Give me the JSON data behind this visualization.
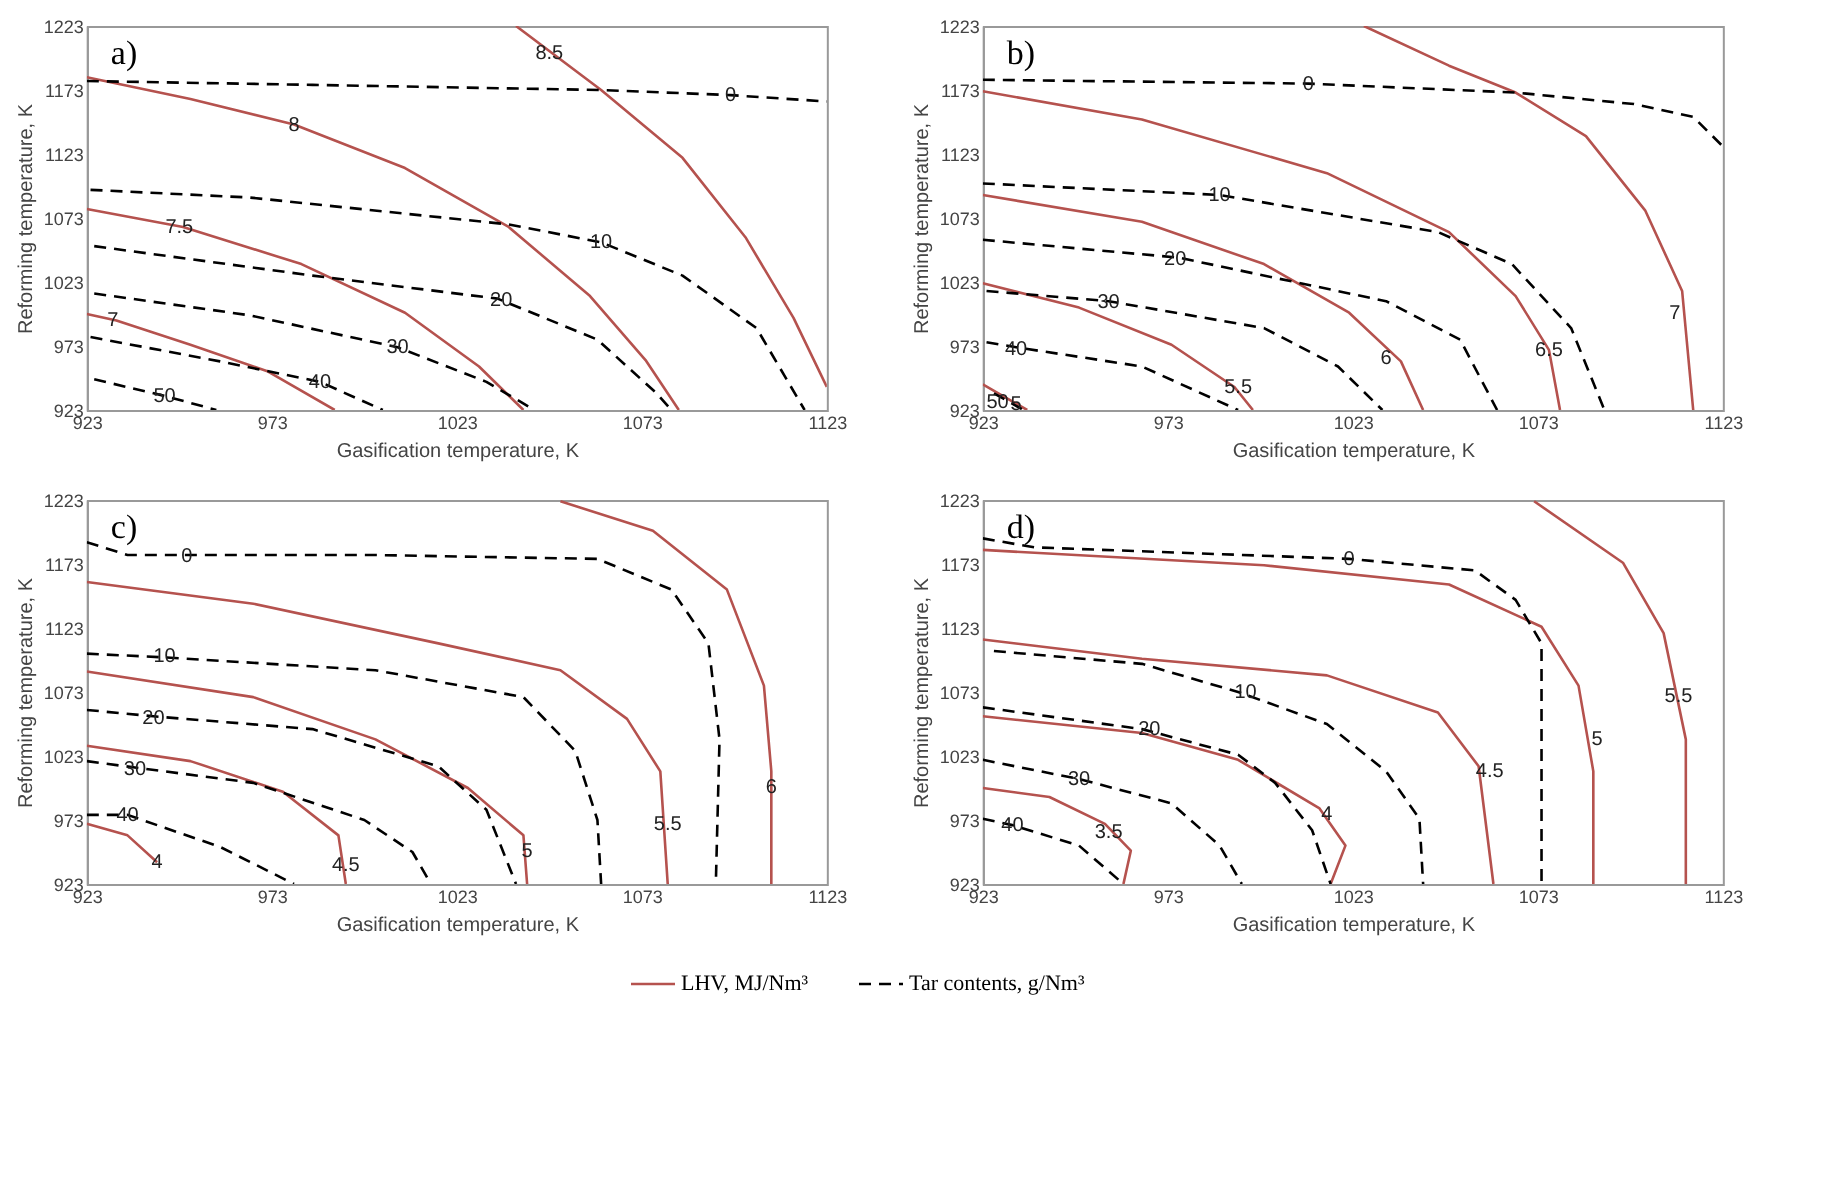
{
  "chart_data": [
    {
      "type": "line",
      "title": "a)",
      "xlabel": "Gasification temperature, K",
      "ylabel": "Reforming temperature, K",
      "xlim": [
        923,
        1123
      ],
      "ylim": [
        923,
        1223
      ],
      "xticks": [
        923,
        973,
        1023,
        1073,
        1123
      ],
      "yticks": [
        923,
        973,
        1023,
        1073,
        1123,
        1173,
        1223
      ],
      "grid": false,
      "marker": "none",
      "series": [
        {
          "color": "#b5524e",
          "line_style": "solid",
          "x": [
            1039,
            1062,
            1084,
            1101,
            1114,
            1123
          ],
          "values": [
            1223,
            1173,
            1120,
            1058,
            995,
            941
          ]
        },
        {
          "color": "#b5524e",
          "line_style": "solid",
          "x": [
            923,
            951,
            979,
            1009,
            1037,
            1059,
            1074,
            1083
          ],
          "values": [
            1183,
            1166,
            1146,
            1112,
            1066,
            1012,
            962,
            923
          ]
        },
        {
          "color": "#b5524e",
          "line_style": "solid",
          "x": [
            923,
            949,
            981,
            1009,
            1029,
            1041
          ],
          "values": [
            1080,
            1066,
            1037,
            999,
            957,
            923
          ]
        },
        {
          "color": "#b5524e",
          "line_style": "solid",
          "x": [
            923,
            931,
            951,
            972,
            990
          ],
          "values": [
            998,
            993,
            974,
            953,
            923
          ]
        },
        {
          "color": "#000000",
          "line_style": "dashed",
          "x": [
            923,
            984,
            1062,
            1097,
            1123
          ],
          "values": [
            1180,
            1177,
            1173,
            1169,
            1164
          ]
        },
        {
          "color": "#000000",
          "line_style": "dashed",
          "x": [
            924,
            967,
            1037,
            1062,
            1084,
            1104,
            1117
          ],
          "values": [
            1095,
            1089,
            1068,
            1054,
            1028,
            987,
            923
          ]
        },
        {
          "color": "#000000",
          "line_style": "dashed",
          "x": [
            925,
            984,
            1034,
            1061,
            1077,
            1081
          ],
          "values": [
            1051,
            1028,
            1010,
            978,
            936,
            923
          ]
        },
        {
          "color": "#000000",
          "line_style": "dashed",
          "x": [
            925,
            967,
            1007,
            1031,
            1044
          ],
          "values": [
            1014,
            997,
            972,
            945,
            923
          ]
        },
        {
          "color": "#000000",
          "line_style": "dashed",
          "x": [
            924,
            959,
            986,
            1003
          ],
          "values": [
            980,
            961,
            945,
            923
          ]
        },
        {
          "color": "#000000",
          "line_style": "dashed",
          "x": [
            925,
            944,
            958
          ],
          "values": [
            947,
            934,
            923
          ]
        }
      ],
      "annotations": [
        {
          "text": "8.5",
          "x": 1048,
          "y": 1202
        },
        {
          "text": "8",
          "x": 979,
          "y": 1146
        },
        {
          "text": "7.5",
          "x": 948,
          "y": 1066
        },
        {
          "text": "7",
          "x": 930,
          "y": 993
        },
        {
          "text": "0",
          "x": 1097,
          "y": 1169
        },
        {
          "text": "10",
          "x": 1062,
          "y": 1054
        },
        {
          "text": "20",
          "x": 1035,
          "y": 1009
        },
        {
          "text": "30",
          "x": 1007,
          "y": 972
        },
        {
          "text": "40",
          "x": 986,
          "y": 945
        },
        {
          "text": "50",
          "x": 944,
          "y": 934
        }
      ]
    },
    {
      "type": "line",
      "title": "b)",
      "xlabel": "Gasification temperature, K",
      "ylabel": "Reforming temperature, K",
      "xlim": [
        923,
        1123
      ],
      "ylim": [
        923,
        1223
      ],
      "xticks": [
        923,
        973,
        1023,
        1073,
        1123
      ],
      "yticks": [
        923,
        973,
        1023,
        1073,
        1123,
        1173,
        1223
      ],
      "grid": false,
      "marker": "none",
      "series": [
        {
          "color": "#b5524e",
          "line_style": "solid",
          "x": [
            1026,
            1049,
            1067,
            1086,
            1102,
            1112,
            1115
          ],
          "values": [
            1223,
            1192,
            1171,
            1137,
            1079,
            1016,
            923
          ]
        },
        {
          "color": "#b5524e",
          "line_style": "solid",
          "x": [
            923,
            966,
            1016,
            1049,
            1067,
            1076,
            1079
          ],
          "values": [
            1172,
            1150,
            1108,
            1062,
            1012,
            970,
            923
          ]
        },
        {
          "color": "#b5524e",
          "line_style": "solid",
          "x": [
            923,
            966,
            999,
            1022,
            1036,
            1042
          ],
          "values": [
            1091,
            1070,
            1037,
            999,
            961,
            923
          ]
        },
        {
          "color": "#b5524e",
          "line_style": "solid",
          "x": [
            923,
            949,
            974,
            991,
            996
          ],
          "values": [
            1022,
            1003,
            974,
            941,
            923
          ]
        },
        {
          "color": "#b5524e",
          "line_style": "solid",
          "x": [
            923,
            932,
            935
          ],
          "values": [
            943,
            928,
            923
          ]
        },
        {
          "color": "#000000",
          "line_style": "dashed",
          "x": [
            923,
            1011,
            1067,
            1099,
            1115,
            1123
          ],
          "values": [
            1181,
            1178,
            1171,
            1162,
            1152,
            1129
          ]
        },
        {
          "color": "#000000",
          "line_style": "dashed",
          "x": [
            923,
            987,
            1046,
            1066,
            1082,
            1091
          ],
          "values": [
            1100,
            1091,
            1062,
            1037,
            987,
            923
          ]
        },
        {
          "color": "#000000",
          "line_style": "dashed",
          "x": [
            923,
            976,
            1032,
            1052,
            1062
          ],
          "values": [
            1056,
            1042,
            1008,
            978,
            923
          ]
        },
        {
          "color": "#000000",
          "line_style": "dashed",
          "x": [
            924,
            957,
            999,
            1019,
            1031
          ],
          "values": [
            1016,
            1008,
            987,
            957,
            923
          ]
        },
        {
          "color": "#000000",
          "line_style": "dashed",
          "x": [
            924,
            932,
            966,
            992
          ],
          "values": [
            976,
            972,
            957,
            923
          ]
        },
        {
          "color": "#000000",
          "line_style": "dashed",
          "x": [
            926,
            934
          ],
          "values": [
            936,
            923
          ]
        }
      ],
      "annotations": [
        {
          "text": "7",
          "x": 1110,
          "y": 999
        },
        {
          "text": "6.5",
          "x": 1076,
          "y": 970
        },
        {
          "text": "6",
          "x": 1032,
          "y": 964
        },
        {
          "text": "5.5",
          "x": 992,
          "y": 941
        },
        {
          "text": "5",
          "x": 932,
          "y": 928
        },
        {
          "text": "0",
          "x": 1011,
          "y": 1178
        },
        {
          "text": "10",
          "x": 987,
          "y": 1091
        },
        {
          "text": "20",
          "x": 975,
          "y": 1041
        },
        {
          "text": "30",
          "x": 957,
          "y": 1007
        },
        {
          "text": "40",
          "x": 932,
          "y": 971
        },
        {
          "text": "50",
          "x": 927,
          "y": 929
        }
      ]
    },
    {
      "type": "line",
      "title": "c)",
      "xlabel": "Gasification temperature, K",
      "ylabel": "Reforming temperature, K",
      "xlim": [
        923,
        1123
      ],
      "ylim": [
        923,
        1223
      ],
      "xticks": [
        923,
        973,
        1023,
        1073,
        1123
      ],
      "yticks": [
        923,
        973,
        1023,
        1073,
        1123,
        1173,
        1223
      ],
      "grid": false,
      "marker": "none",
      "series": [
        {
          "color": "#b5524e",
          "line_style": "solid",
          "x": [
            1051,
            1076,
            1096,
            1106,
            1108,
            1108
          ],
          "values": [
            1222,
            1199,
            1153,
            1078,
            1011,
            923
          ]
        },
        {
          "color": "#b5524e",
          "line_style": "solid",
          "x": [
            923,
            968,
            1018,
            1051,
            1069,
            1078,
            1080
          ],
          "values": [
            1159,
            1142,
            1111,
            1090,
            1052,
            1011,
            923
          ]
        },
        {
          "color": "#b5524e",
          "line_style": "solid",
          "x": [
            923,
            968,
            1001,
            1026,
            1041,
            1042
          ],
          "values": [
            1089,
            1069,
            1036,
            998,
            961,
            923
          ]
        },
        {
          "color": "#b5524e",
          "line_style": "solid",
          "x": [
            923,
            951,
            976,
            991,
            993
          ],
          "values": [
            1031,
            1019,
            995,
            961,
            923
          ]
        },
        {
          "color": "#b5524e",
          "line_style": "solid",
          "x": [
            923,
            934,
            942
          ],
          "values": [
            970,
            961,
            940
          ]
        },
        {
          "color": "#000000",
          "line_style": "dashed",
          "x": [
            923,
            934,
            1001,
            1061,
            1081,
            1091,
            1094,
            1093
          ],
          "values": [
            1190,
            1180,
            1180,
            1177,
            1153,
            1111,
            1036,
            923
          ]
        },
        {
          "color": "#000000",
          "line_style": "dashed",
          "x": [
            923,
            944,
            1001,
            1041,
            1055,
            1061,
            1062
          ],
          "values": [
            1103,
            1100,
            1090,
            1069,
            1027,
            973,
            923
          ]
        },
        {
          "color": "#000000",
          "line_style": "dashed",
          "x": [
            923,
            941,
            984,
            1018,
            1031,
            1039
          ],
          "values": [
            1059,
            1054,
            1044,
            1015,
            981,
            923
          ]
        },
        {
          "color": "#000000",
          "line_style": "dashed",
          "x": [
            923,
            936,
            968,
            998,
            1011,
            1016
          ],
          "values": [
            1019,
            1014,
            1002,
            973,
            948,
            923
          ]
        },
        {
          "color": "#000000",
          "line_style": "dashed",
          "x": [
            923,
            934,
            959,
            979
          ],
          "values": [
            977,
            977,
            952,
            923
          ]
        }
      ],
      "annotations": [
        {
          "text": "6",
          "x": 1108,
          "y": 999
        },
        {
          "text": "5.5",
          "x": 1080,
          "y": 970
        },
        {
          "text": "5",
          "x": 1042,
          "y": 949
        },
        {
          "text": "4.5",
          "x": 993,
          "y": 938
        },
        {
          "text": "4",
          "x": 942,
          "y": 940
        },
        {
          "text": "0",
          "x": 950,
          "y": 1179
        },
        {
          "text": "10",
          "x": 944,
          "y": 1101
        },
        {
          "text": "20",
          "x": 941,
          "y": 1053
        },
        {
          "text": "30",
          "x": 936,
          "y": 1013
        },
        {
          "text": "40",
          "x": 934,
          "y": 977
        }
      ]
    },
    {
      "type": "line",
      "title": "d)",
      "xlabel": "Gasification temperature, K",
      "ylabel": "Reforming temperature, K",
      "xlim": [
        923,
        1123
      ],
      "ylim": [
        923,
        1223
      ],
      "xticks": [
        923,
        973,
        1023,
        1073,
        1123
      ],
      "yticks": [
        923,
        973,
        1023,
        1073,
        1123,
        1173,
        1223
      ],
      "grid": false,
      "marker": "none",
      "series": [
        {
          "color": "#b5524e",
          "line_style": "solid",
          "x": [
            1072,
            1096,
            1107,
            1113,
            1113
          ],
          "values": [
            1222,
            1174,
            1119,
            1036,
            923
          ]
        },
        {
          "color": "#b5524e",
          "line_style": "solid",
          "x": [
            923,
            999,
            1049,
            1074,
            1084,
            1088,
            1088
          ],
          "values": [
            1184,
            1172,
            1157,
            1124,
            1078,
            1011,
            923
          ]
        },
        {
          "color": "#b5524e",
          "line_style": "solid",
          "x": [
            923,
            966,
            1016,
            1046,
            1057,
            1061
          ],
          "values": [
            1114,
            1099,
            1086,
            1057,
            1015,
            923
          ]
        },
        {
          "color": "#b5524e",
          "line_style": "solid",
          "x": [
            923,
            966,
            992,
            1014,
            1021,
            1017
          ],
          "values": [
            1054,
            1041,
            1020,
            982,
            953,
            923
          ]
        },
        {
          "color": "#b5524e",
          "line_style": "solid",
          "x": [
            923,
            941,
            956,
            963,
            961
          ],
          "values": [
            998,
            991,
            970,
            949,
            923
          ]
        },
        {
          "color": "#000000",
          "line_style": "dashed",
          "x": [
            923,
            937,
            1022,
            1056,
            1067,
            1074,
            1074
          ],
          "values": [
            1193,
            1186,
            1177,
            1168,
            1145,
            1111,
            923
          ]
        },
        {
          "color": "#000000",
          "line_style": "dashed",
          "x": [
            926,
            966,
            992,
            1016,
            1032,
            1041,
            1042
          ],
          "values": [
            1105,
            1095,
            1073,
            1048,
            1011,
            974,
            923
          ]
        },
        {
          "color": "#000000",
          "line_style": "dashed",
          "x": [
            923,
            966,
            992,
            1002,
            1012,
            1017
          ],
          "values": [
            1061,
            1044,
            1024,
            1002,
            965,
            923
          ]
        },
        {
          "color": "#000000",
          "line_style": "dashed",
          "x": [
            923,
            949,
            974,
            987,
            993
          ],
          "values": [
            1020,
            1005,
            986,
            953,
            923
          ]
        },
        {
          "color": "#000000",
          "line_style": "dashed",
          "x": [
            923,
            931,
            949,
            961
          ],
          "values": [
            974,
            969,
            953,
            923
          ]
        }
      ],
      "annotations": [
        {
          "text": "5.5",
          "x": 1111,
          "y": 1070
        },
        {
          "text": "5",
          "x": 1089,
          "y": 1036
        },
        {
          "text": "4.5",
          "x": 1060,
          "y": 1011
        },
        {
          "text": "4",
          "x": 1016,
          "y": 978
        },
        {
          "text": "3.5",
          "x": 957,
          "y": 964
        },
        {
          "text": "0",
          "x": 1022,
          "y": 1177
        },
        {
          "text": "10",
          "x": 994,
          "y": 1073
        },
        {
          "text": "20",
          "x": 968,
          "y": 1044
        },
        {
          "text": "30",
          "x": 949,
          "y": 1005
        },
        {
          "text": "40",
          "x": 931,
          "y": 969
        }
      ]
    },
    {
      "type": "other",
      "legend": "bottom",
      "series": [
        {
          "name": "LHV, MJ/Nm³",
          "color": "#b5524e",
          "line_style": "solid"
        },
        {
          "name": "Tar contents, g/Nm³",
          "color": "#000000",
          "line_style": "dashed"
        }
      ]
    }
  ]
}
